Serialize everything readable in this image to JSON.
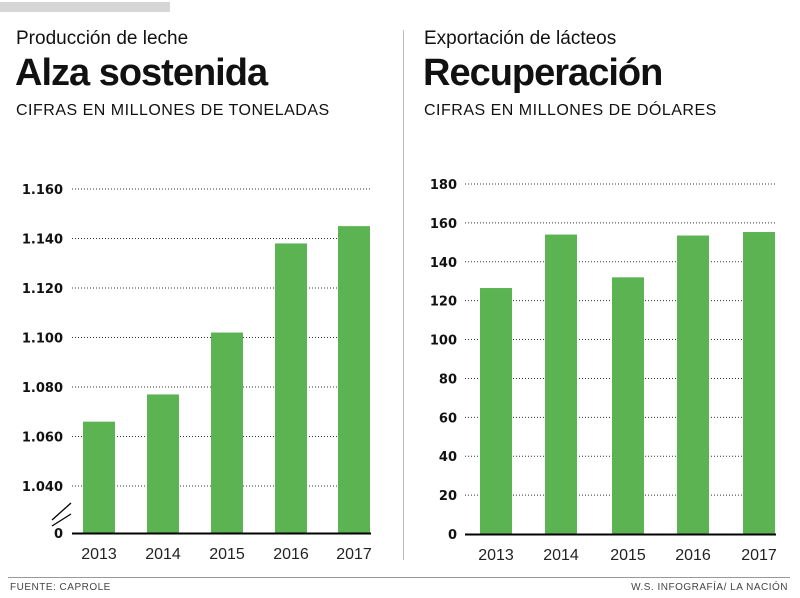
{
  "colors": {
    "bar": "#5bb352",
    "grid": "#333333",
    "axis": "#000000"
  },
  "left": {
    "kicker": "Producción de leche",
    "headline": "Alza sostenida",
    "unit": "CIFRAS EN MILLONES DE TONELADAS"
  },
  "right": {
    "kicker": "Exportación de lácteos",
    "headline": "Recuperación",
    "unit": "CIFRAS EN MILLONES DE DÓLARES"
  },
  "footer": {
    "source": "FUENTE: CAPROLE",
    "credit": "W.S. INFOGRAFÍA/ LA NACIÓN"
  },
  "chart_data": [
    {
      "type": "bar",
      "title": "Alza sostenida",
      "categories": [
        "2013",
        "2014",
        "2015",
        "2016",
        "2017"
      ],
      "values": [
        1.066,
        1.077,
        1.102,
        1.138,
        1.145
      ],
      "ylim": [
        1.04,
        1.16
      ],
      "axis_break": true,
      "ytick_values": [
        0,
        1.04,
        1.06,
        1.08,
        1.1,
        1.12,
        1.14,
        1.16
      ],
      "ytick_labels": [
        "0",
        "1.040",
        "1.060",
        "1.080",
        "1.100",
        "1.120",
        "1.140",
        "1.160"
      ],
      "grid": true
    },
    {
      "type": "bar",
      "title": "Recuperación",
      "categories": [
        "2013",
        "2014",
        "2015",
        "2016",
        "2017"
      ],
      "values": [
        126.5,
        154,
        132,
        153.5,
        155.3
      ],
      "ylim": [
        0,
        180
      ],
      "ytick_values": [
        0,
        20,
        40,
        60,
        80,
        100,
        120,
        140,
        160,
        180
      ],
      "ytick_labels": [
        "0",
        "20",
        "40",
        "60",
        "80",
        "100",
        "120",
        "140",
        "160",
        "180"
      ],
      "grid": true
    }
  ]
}
